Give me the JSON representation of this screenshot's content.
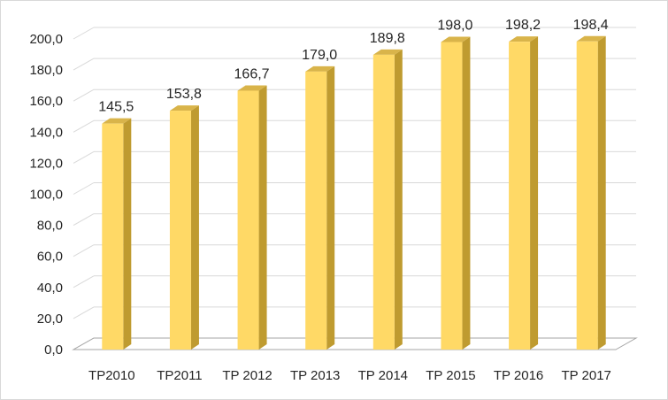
{
  "chart_data": {
    "type": "bar",
    "style": "3d-column",
    "categories": [
      "TP2010",
      "TP2011",
      "TP 2012",
      "TP 2013",
      "TP 2014",
      "TP 2015",
      "TP 2016",
      "TP 2017"
    ],
    "values": [
      145.5,
      153.8,
      166.7,
      179.0,
      189.8,
      198.0,
      198.2,
      198.4
    ],
    "value_labels": [
      "145,5",
      "153,8",
      "166,7",
      "179,0",
      "189,8",
      "198,0",
      "198,2",
      "198,4"
    ],
    "y_ticks": [
      0,
      20,
      40,
      60,
      80,
      100,
      120,
      140,
      160,
      180,
      200
    ],
    "y_tick_labels": [
      "0,0",
      "20,0",
      "40,0",
      "60,0",
      "80,0",
      "100,0",
      "120,0",
      "140,0",
      "160,0",
      "180,0",
      "200,0"
    ],
    "ylim": [
      0,
      200
    ],
    "title": "",
    "xlabel": "",
    "ylabel": "",
    "grid": true,
    "legend": "none",
    "colors": {
      "bar_front": "#ffd966",
      "bar_side": "#bf9b30",
      "bar_top": "#d9b44a",
      "grid": "#d9d9d9",
      "text": "#262626"
    }
  }
}
